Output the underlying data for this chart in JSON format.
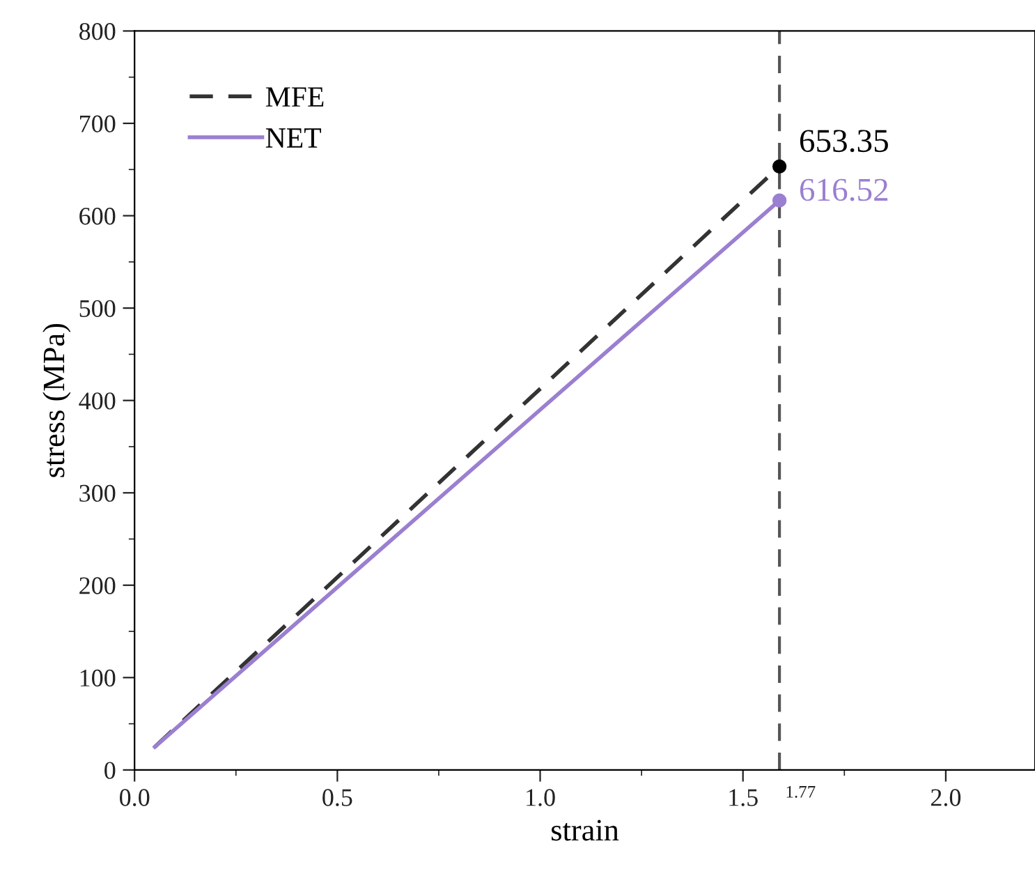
{
  "chart_data": {
    "type": "line",
    "xlabel": "strain",
    "ylabel": "stress (MPa)",
    "xlim": [
      0,
      2.22
    ],
    "ylim": [
      0,
      800
    ],
    "xticks": [
      {
        "value": 0,
        "label": "0.0"
      },
      0.5,
      {
        "value": 1,
        "label": "1.0"
      },
      1.5,
      {
        "value": 2,
        "label": "2.0"
      }
    ],
    "annotations": [
      {
        "text": "1.77",
        "x": 1.59,
        "y": 0
      }
    ],
    "yticks": [
      0,
      100,
      200,
      300,
      400,
      500,
      600,
      700,
      800
    ],
    "grid": false,
    "x": [
      0.05,
      1.59
    ],
    "legend": "top left",
    "series": [
      {
        "name": "MFE",
        "color": "#333333",
        "line_style": "dashed",
        "values": [
          25,
          653.35
        ]
      },
      {
        "name": "NET",
        "color": "#9b7fd0",
        "line_style": "solid",
        "values": [
          25,
          616.52
        ]
      },
      {
        "type": "scatter",
        "color": "#000000",
        "marker": "circle",
        "x": [
          1.59
        ],
        "values": [
          653.35
        ],
        "value_labels": [
          "653.35"
        ]
      },
      {
        "type": "scatter",
        "color": "#9b7fd0",
        "marker": "circle",
        "x": [
          1.59
        ],
        "values": [
          616.52
        ],
        "value_labels": [
          "616.52"
        ]
      }
    ],
    "ref_lines": [
      {
        "axis": "x",
        "value": 1.59,
        "color": "#555555",
        "line_style": "dashed"
      }
    ]
  }
}
